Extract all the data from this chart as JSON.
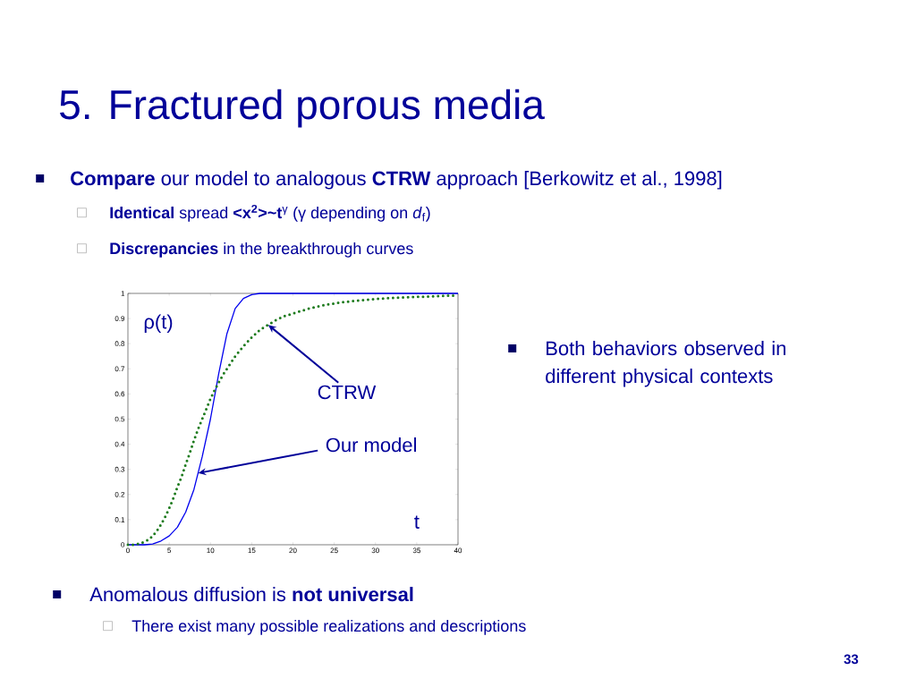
{
  "chart_data": {
    "type": "line",
    "title": "5. Fractured porous media",
    "ylabel": "ρ(t)",
    "xlabel": "t",
    "xlim": [
      0,
      40
    ],
    "ylim": [
      0,
      1
    ],
    "xticks": [
      0,
      5,
      10,
      15,
      20,
      25,
      30,
      35,
      40
    ],
    "yticks": [
      0,
      0.1,
      0.2,
      0.3,
      0.4,
      0.5,
      0.6,
      0.7,
      0.8,
      0.9,
      1
    ],
    "series": [
      {
        "line_style": "solid",
        "color": "#0000ee",
        "x": [
          0,
          2,
          3,
          4,
          5,
          6,
          7,
          8,
          9,
          10,
          11,
          12,
          13,
          14,
          15,
          16,
          40
        ],
        "values": [
          0,
          0,
          0.003,
          0.015,
          0.035,
          0.07,
          0.13,
          0.22,
          0.35,
          0.5,
          0.68,
          0.84,
          0.94,
          0.98,
          0.995,
          1,
          1
        ]
      },
      {
        "line_style": "dotted",
        "color": "#1e7b1e",
        "x": [
          0,
          0.5,
          1,
          1.5,
          2,
          2.5,
          3,
          3.5,
          4,
          4.5,
          5,
          5.5,
          6,
          6.5,
          7,
          7.5,
          8,
          8.5,
          9,
          9.5,
          10,
          10.5,
          11,
          11.5,
          12,
          12.5,
          13,
          13.5,
          14,
          15,
          16,
          17,
          18,
          19,
          20,
          22,
          24,
          26,
          28,
          30,
          32,
          35,
          38,
          40
        ],
        "values": [
          0,
          0,
          0.002,
          0.005,
          0.012,
          0.02,
          0.035,
          0.055,
          0.08,
          0.11,
          0.145,
          0.185,
          0.23,
          0.27,
          0.32,
          0.365,
          0.415,
          0.46,
          0.5,
          0.54,
          0.58,
          0.615,
          0.645,
          0.675,
          0.7,
          0.725,
          0.75,
          0.77,
          0.79,
          0.825,
          0.855,
          0.875,
          0.895,
          0.91,
          0.92,
          0.94,
          0.955,
          0.965,
          0.972,
          0.978,
          0.982,
          0.986,
          0.99,
          0.992
        ]
      }
    ],
    "annotations": [
      "**Compare** our model to analogous **CTRW** approach [Berkowitz et al., 1998]",
      "**Identical** spread **<x$^{2}$>~t**$^{γ}$  (γ depending on *d*$_{f}$)",
      "**Discrepancies** in the breakthrough curves",
      "Both behaviors observed in different physical contexts",
      "Anomalous diffusion is **not universal**",
      "There exist many possible realizations and descriptions",
      "33",
      {
        "text": "CTRW",
        "x": 17,
        "y": 0.875
      },
      {
        "text": "Our model",
        "x": 8.5,
        "y": 0.285
      }
    ]
  }
}
